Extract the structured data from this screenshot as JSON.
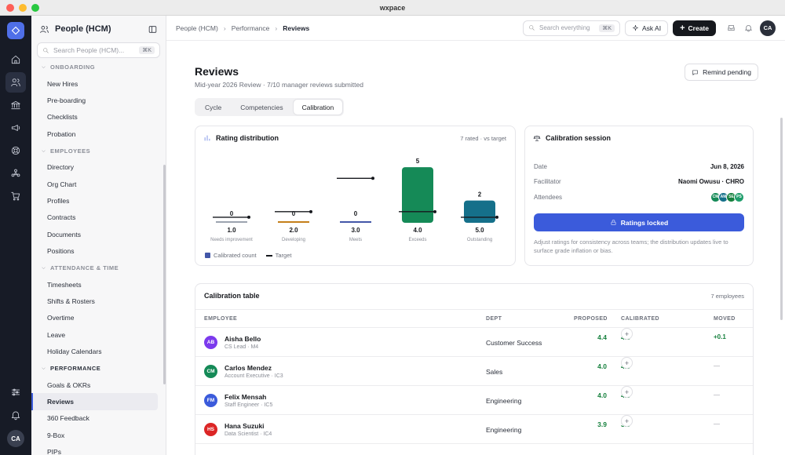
{
  "window": {
    "title": "wxpace"
  },
  "sidebar": {
    "app_title": "People (HCM)",
    "search_placeholder": "Search People (HCM)...",
    "search_shortcut": "⌘K",
    "sections": [
      {
        "label": "ONBOARDING",
        "strong": false,
        "items": [
          "New Hires",
          "Pre-boarding",
          "Checklists",
          "Probation"
        ]
      },
      {
        "label": "EMPLOYEES",
        "strong": false,
        "items": [
          "Directory",
          "Org Chart",
          "Profiles",
          "Contracts",
          "Documents",
          "Positions"
        ]
      },
      {
        "label": "ATTENDANCE & TIME",
        "strong": false,
        "items": [
          "Timesheets",
          "Shifts & Rosters",
          "Overtime",
          "Leave",
          "Holiday Calendars"
        ]
      },
      {
        "label": "PERFORMANCE",
        "strong": true,
        "items": [
          "Goals & OKRs",
          "Reviews",
          "360 Feedback",
          "9-Box",
          "PIPs"
        ]
      }
    ],
    "active_item": "Reviews"
  },
  "topbar": {
    "breadcrumb": [
      "People (HCM)",
      "Performance",
      "Reviews"
    ],
    "search_placeholder": "Search everything",
    "search_shortcut": "⌘K",
    "ask_ai_label": "Ask AI",
    "create_label": "Create",
    "avatar_initials": "CA"
  },
  "rail": {
    "avatar_initials": "CA"
  },
  "page": {
    "title": "Reviews",
    "subtitle": "Mid-year 2026 Review · 7/10 manager reviews submitted",
    "remind_label": "Remind pending",
    "tabs": [
      "Cycle",
      "Competencies",
      "Calibration"
    ],
    "active_tab": "Calibration"
  },
  "chart_data": {
    "type": "bar",
    "title": "Rating distribution",
    "meta": "7 rated · vs target",
    "categories": [
      "1.0",
      "2.0",
      "3.0",
      "4.0",
      "5.0"
    ],
    "category_names": [
      "Needs improvement",
      "Developing",
      "Meets",
      "Exceeds",
      "Outstanding"
    ],
    "series": [
      {
        "name": "Calibrated count",
        "values": [
          0,
          0,
          0,
          5,
          2
        ]
      },
      {
        "name": "Target",
        "values": [
          0.5,
          1.0,
          4.0,
          1.0,
          0.5
        ]
      }
    ],
    "ylim": [
      0,
      5.5
    ],
    "bar_colors": [
      "#9ca3af",
      "#c47f1a",
      "#4357a8",
      "#158a57",
      "#15708a"
    ],
    "legend_position": "bottom-left"
  },
  "calibration_session": {
    "title": "Calibration session",
    "date_label": "Date",
    "date_value": "Jun 8, 2026",
    "facilitator_label": "Facilitator",
    "facilitator_value": "Naomi Owusu · CHRO",
    "attendees_label": "Attendees",
    "attendees": [
      {
        "initials": "CM",
        "color": "#158a57"
      },
      {
        "initials": "AM",
        "color": "#15708a"
      },
      {
        "initials": "SE",
        "color": "#15803d"
      },
      {
        "initials": "PS",
        "color": "#1f9d6b"
      }
    ],
    "locked_label": "Ratings locked",
    "note": "Adjust ratings for consistency across teams; the distribution updates live to surface grade inflation or bias."
  },
  "calibration_table": {
    "title": "Calibration table",
    "count": "7 employees",
    "columns": {
      "employee": "EMPLOYEE",
      "dept": "DEPT",
      "proposed": "PROPOSED",
      "calibrated": "CALIBRATED",
      "moved": "MOVED"
    },
    "rows": [
      {
        "initials": "AB",
        "color": "#7c3aed",
        "name": "Aisha Bello",
        "role": "CS Lead · M4",
        "dept": "Customer Success",
        "proposed": "4.4",
        "calibrated": "4.5",
        "moved": "+0.1",
        "moved_none": false
      },
      {
        "initials": "CM",
        "color": "#158a57",
        "name": "Carlos Mendez",
        "role": "Account Executive · IC3",
        "dept": "Sales",
        "proposed": "4.0",
        "calibrated": "4.0",
        "moved": "—",
        "moved_none": true
      },
      {
        "initials": "FM",
        "color": "#3b5bdb",
        "name": "Felix Mensah",
        "role": "Staff Engineer · IC5",
        "dept": "Engineering",
        "proposed": "4.0",
        "calibrated": "4.0",
        "moved": "—",
        "moved_none": true
      },
      {
        "initials": "HS",
        "color": "#dc2626",
        "name": "Hana Suzuki",
        "role": "Data Scientist · IC4",
        "dept": "Engineering",
        "proposed": "3.9",
        "calibrated": "3.9",
        "moved": "—",
        "moved_none": true
      }
    ]
  }
}
